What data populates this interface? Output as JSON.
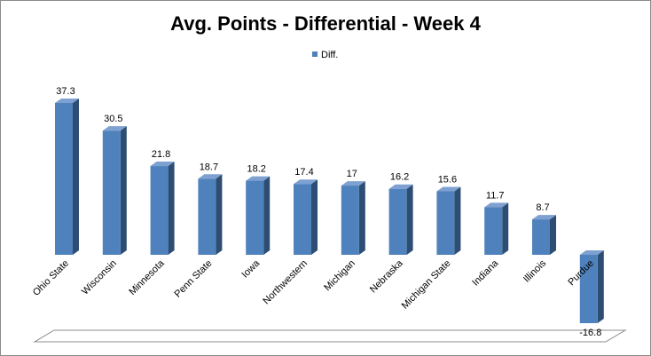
{
  "chart_data": {
    "type": "bar",
    "title": "Avg. Points - Differential - Week 4",
    "legend": {
      "position": "top",
      "entries": [
        "Diff."
      ]
    },
    "categories": [
      "Ohio State",
      "Wisconsin",
      "Minnesota",
      "Penn State",
      "Iowa",
      "Northwestern",
      "Michigan",
      "Nebraska",
      "Michigan State",
      "Indiana",
      "Illinois",
      "Purdue"
    ],
    "series": [
      {
        "name": "Diff.",
        "values": [
          37.3,
          30.5,
          21.8,
          18.7,
          18.2,
          17.4,
          17,
          16.2,
          15.6,
          11.7,
          8.7,
          -16.8
        ]
      }
    ],
    "data_labels": [
      "37.3",
      "30.5",
      "21.8",
      "18.7",
      "18.2",
      "17.4",
      "17",
      "16.2",
      "15.6",
      "11.7",
      "8.7",
      "-16.8"
    ],
    "ylim": [
      -16.8,
      37.3
    ],
    "grid": false,
    "style": "3d-column",
    "colors": {
      "front": "#4f81bd",
      "side": "#2e4d72",
      "top": "#7ea1d1",
      "floor": "#ffffff",
      "floor_edge": "#8c8c8c"
    }
  }
}
